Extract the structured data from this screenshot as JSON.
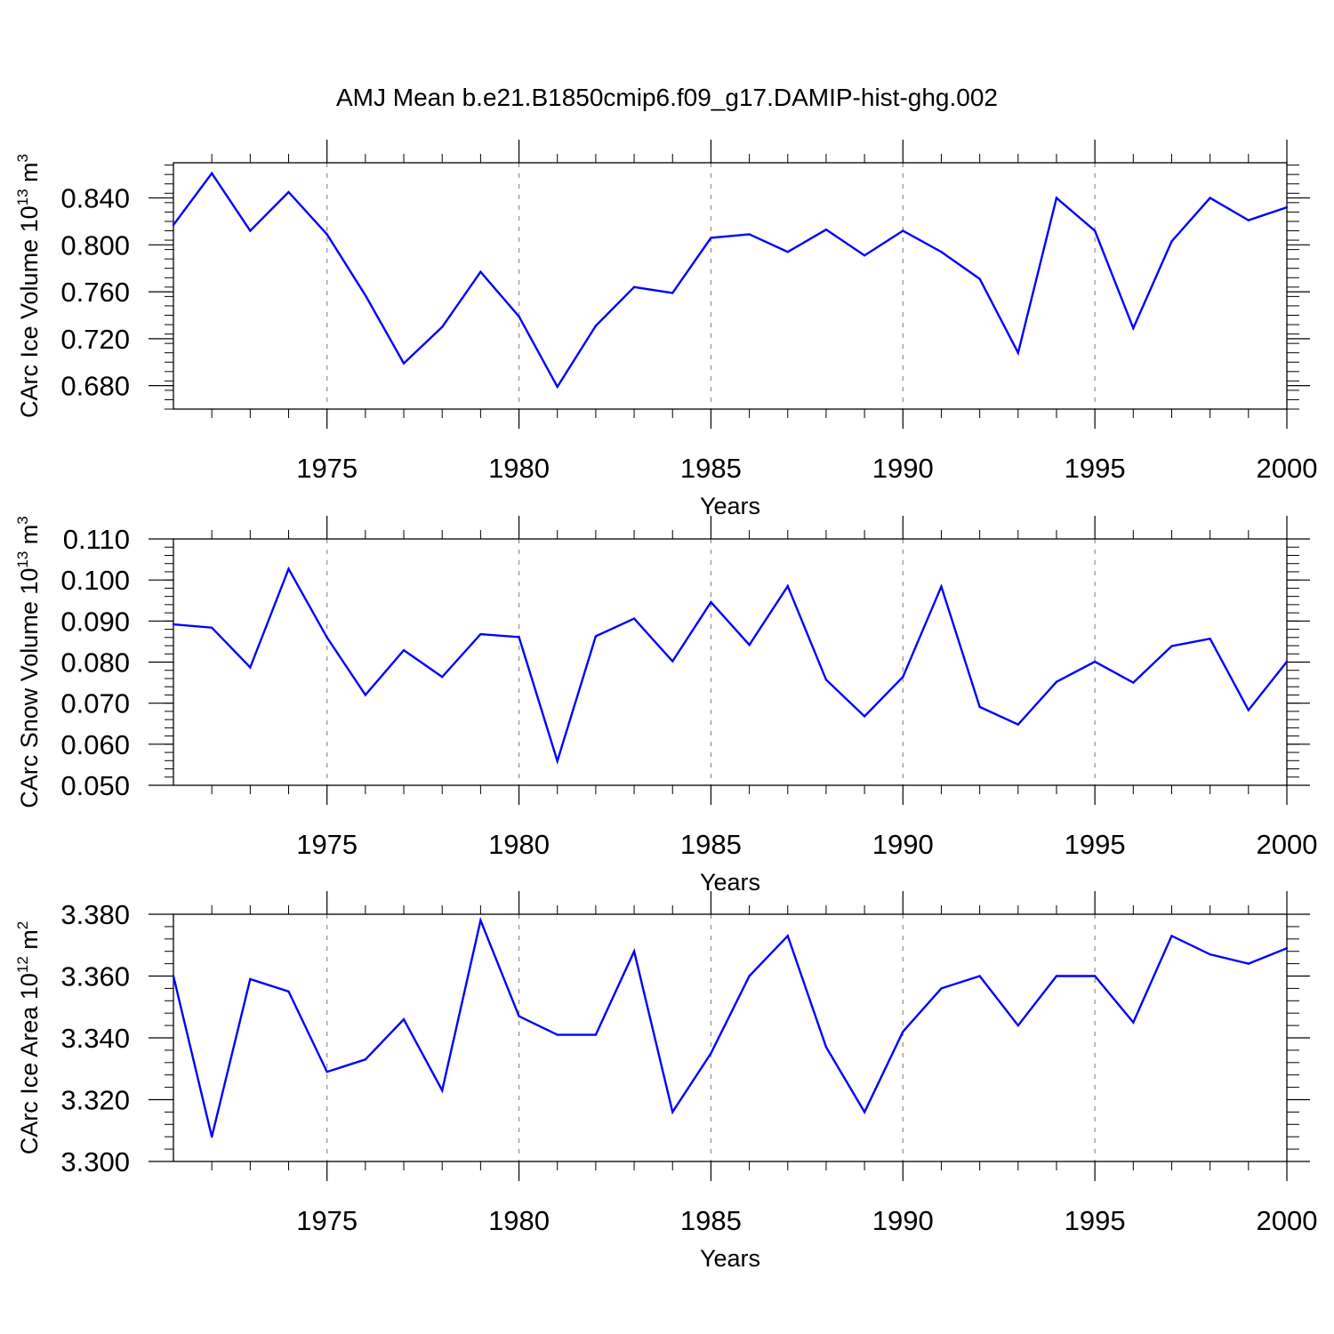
{
  "title": "AMJ Mean b.e21.B1850cmip6.f09_g17.DAMIP-hist-ghg.002",
  "colors": {
    "line": "#0000ff",
    "axis": "#000000",
    "grid": "#8c8c8c"
  },
  "chart_data": [
    {
      "type": "line",
      "name": "ice-volume",
      "ylabel": {
        "prefix": "CArc Ice Volume 10",
        "exp": "13",
        "unit": " m",
        "unit_exp": "3"
      },
      "xlabel": "Years",
      "xlim": [
        1971,
        2000
      ],
      "ylim": [
        0.66,
        0.87
      ],
      "yticks": [
        0.68,
        0.72,
        0.76,
        0.8,
        0.84
      ],
      "ytick_labels": [
        "0.680",
        "0.720",
        "0.760",
        "0.800",
        "0.840"
      ],
      "yminor_step": 0.008,
      "xticks": [
        1975,
        1980,
        1985,
        1990,
        1995,
        2000
      ],
      "xtick_labels": [
        "1975",
        "1980",
        "1985",
        "1990",
        "1995",
        "2000"
      ],
      "grid": "vertical dashed at major x ticks",
      "x": [
        1971,
        1972,
        1973,
        1974,
        1975,
        1976,
        1977,
        1978,
        1979,
        1980,
        1981,
        1982,
        1983,
        1984,
        1985,
        1986,
        1987,
        1988,
        1989,
        1990,
        1991,
        1992,
        1993,
        1994,
        1995,
        1996,
        1997,
        1998,
        1999,
        2000
      ],
      "values": [
        0.817,
        0.861,
        0.812,
        0.845,
        0.809,
        0.757,
        0.699,
        0.73,
        0.777,
        0.739,
        0.679,
        0.731,
        0.764,
        0.759,
        0.806,
        0.809,
        0.794,
        0.813,
        0.791,
        0.812,
        0.794,
        0.771,
        0.708,
        0.84,
        0.812,
        0.729,
        0.803,
        0.84,
        0.821,
        0.832
      ]
    },
    {
      "type": "line",
      "name": "snow-volume",
      "ylabel": {
        "prefix": "CArc Snow Volume 10",
        "exp": "13",
        "unit": " m",
        "unit_exp": "3"
      },
      "xlabel": "Years",
      "xlim": [
        1971,
        2000
      ],
      "ylim": [
        0.05,
        0.11
      ],
      "yticks": [
        0.05,
        0.06,
        0.07,
        0.08,
        0.09,
        0.1,
        0.11
      ],
      "ytick_labels": [
        "0.050",
        "0.060",
        "0.070",
        "0.080",
        "0.090",
        "0.100",
        "0.110"
      ],
      "yminor_step": 0.002,
      "xticks": [
        1975,
        1980,
        1985,
        1990,
        1995,
        2000
      ],
      "xtick_labels": [
        "1975",
        "1980",
        "1985",
        "1990",
        "1995",
        "2000"
      ],
      "grid": "vertical dashed at major x ticks",
      "x": [
        1971,
        1972,
        1973,
        1974,
        1975,
        1976,
        1977,
        1978,
        1979,
        1980,
        1981,
        1982,
        1983,
        1984,
        1985,
        1986,
        1987,
        1988,
        1989,
        1990,
        1991,
        1992,
        1993,
        1994,
        1995,
        1996,
        1997,
        1998,
        1999,
        2000
      ],
      "values": [
        0.0892,
        0.0884,
        0.0787,
        0.1027,
        0.086,
        0.072,
        0.0829,
        0.0764,
        0.0868,
        0.0861,
        0.0559,
        0.0863,
        0.0906,
        0.0802,
        0.0946,
        0.0842,
        0.0985,
        0.0757,
        0.0668,
        0.0764,
        0.0984,
        0.0691,
        0.0648,
        0.0752,
        0.0801,
        0.075,
        0.0839,
        0.0857,
        0.0683,
        0.0801
      ]
    },
    {
      "type": "line",
      "name": "ice-area",
      "ylabel": {
        "prefix": "CArc Ice Area 10",
        "exp": "12",
        "unit": " m",
        "unit_exp": "2"
      },
      "xlabel": "Years",
      "xlim": [
        1971,
        2000
      ],
      "ylim": [
        3.3,
        3.38
      ],
      "yticks": [
        3.3,
        3.32,
        3.34,
        3.36,
        3.38
      ],
      "ytick_labels": [
        "3.300",
        "3.320",
        "3.340",
        "3.360",
        "3.380"
      ],
      "yminor_step": 0.004,
      "xticks": [
        1975,
        1980,
        1985,
        1990,
        1995,
        2000
      ],
      "xtick_labels": [
        "1975",
        "1980",
        "1985",
        "1990",
        "1995",
        "2000"
      ],
      "grid": "vertical dashed at major x ticks",
      "x": [
        1971,
        1972,
        1973,
        1974,
        1975,
        1976,
        1977,
        1978,
        1979,
        1980,
        1981,
        1982,
        1983,
        1984,
        1985,
        1986,
        1987,
        1988,
        1989,
        1990,
        1991,
        1992,
        1993,
        1994,
        1995,
        1996,
        1997,
        1998,
        1999,
        2000
      ],
      "values": [
        3.36,
        3.308,
        3.359,
        3.355,
        3.329,
        3.333,
        3.346,
        3.323,
        3.378,
        3.347,
        3.341,
        3.341,
        3.368,
        3.316,
        3.335,
        3.36,
        3.373,
        3.337,
        3.316,
        3.342,
        3.356,
        3.36,
        3.344,
        3.36,
        3.36,
        3.345,
        3.373,
        3.367,
        3.364,
        3.369
      ]
    }
  ]
}
